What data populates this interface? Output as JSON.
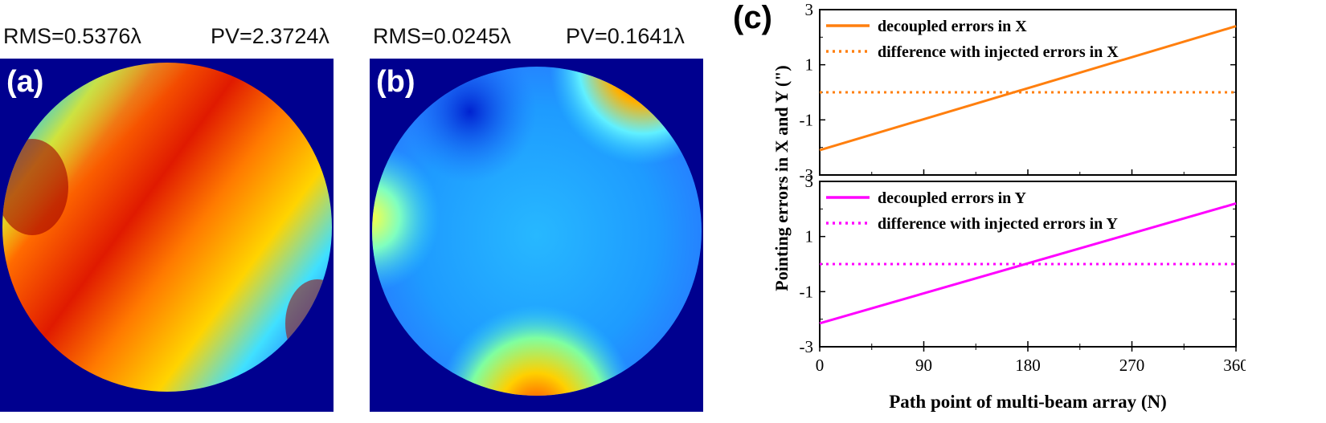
{
  "panel_a": {
    "letter": "(a)",
    "rms": "RMS=0.5376λ",
    "pv": "PV=2.3724λ"
  },
  "panel_b": {
    "letter": "(b)",
    "rms": "RMS=0.0245λ",
    "pv": "PV=0.1641λ"
  },
  "panel_c": {
    "letter": "(c)"
  },
  "colors": {
    "map_background": "#00008f",
    "orange_series": "#ff7f0e",
    "magenta_series": "#ff00ff"
  },
  "chart_data": [
    {
      "type": "line",
      "panel": "top",
      "xlabel": "",
      "ylabel": "Pointing errors in X and Y (\")",
      "xlim": [
        0,
        360
      ],
      "ylim": [
        -3,
        3
      ],
      "x_ticks": [
        "0",
        "90",
        "180",
        "270",
        "360"
      ],
      "y_ticks": [
        "3",
        "1",
        "-1",
        "-3"
      ],
      "legend_position": "top-left",
      "series": [
        {
          "name": "decoupled errors in X",
          "style": "solid",
          "color": "#ff7f0e",
          "x": [
            0,
            360
          ],
          "y": [
            -2.1,
            2.4
          ]
        },
        {
          "name": "difference with injected errors in X",
          "style": "dotted",
          "color": "#ff7f0e",
          "x": [
            0,
            360
          ],
          "y": [
            0,
            0
          ]
        }
      ]
    },
    {
      "type": "line",
      "panel": "bottom",
      "xlabel": "Path point of multi-beam array (N)",
      "ylabel": "Pointing errors in X and Y (\")",
      "xlim": [
        0,
        360
      ],
      "ylim": [
        -3,
        3
      ],
      "x_ticks": [
        "0",
        "90",
        "180",
        "270",
        "360"
      ],
      "y_ticks": [
        "3",
        "1",
        "-1",
        "-3"
      ],
      "legend_position": "top-left",
      "series": [
        {
          "name": "decoupled errors in Y",
          "style": "solid",
          "color": "#ff00ff",
          "x": [
            0,
            360
          ],
          "y": [
            -2.15,
            2.2
          ]
        },
        {
          "name": "difference with injected errors in Y",
          "style": "dotted",
          "color": "#ff00ff",
          "x": [
            0,
            360
          ],
          "y": [
            0,
            0
          ]
        }
      ]
    }
  ]
}
